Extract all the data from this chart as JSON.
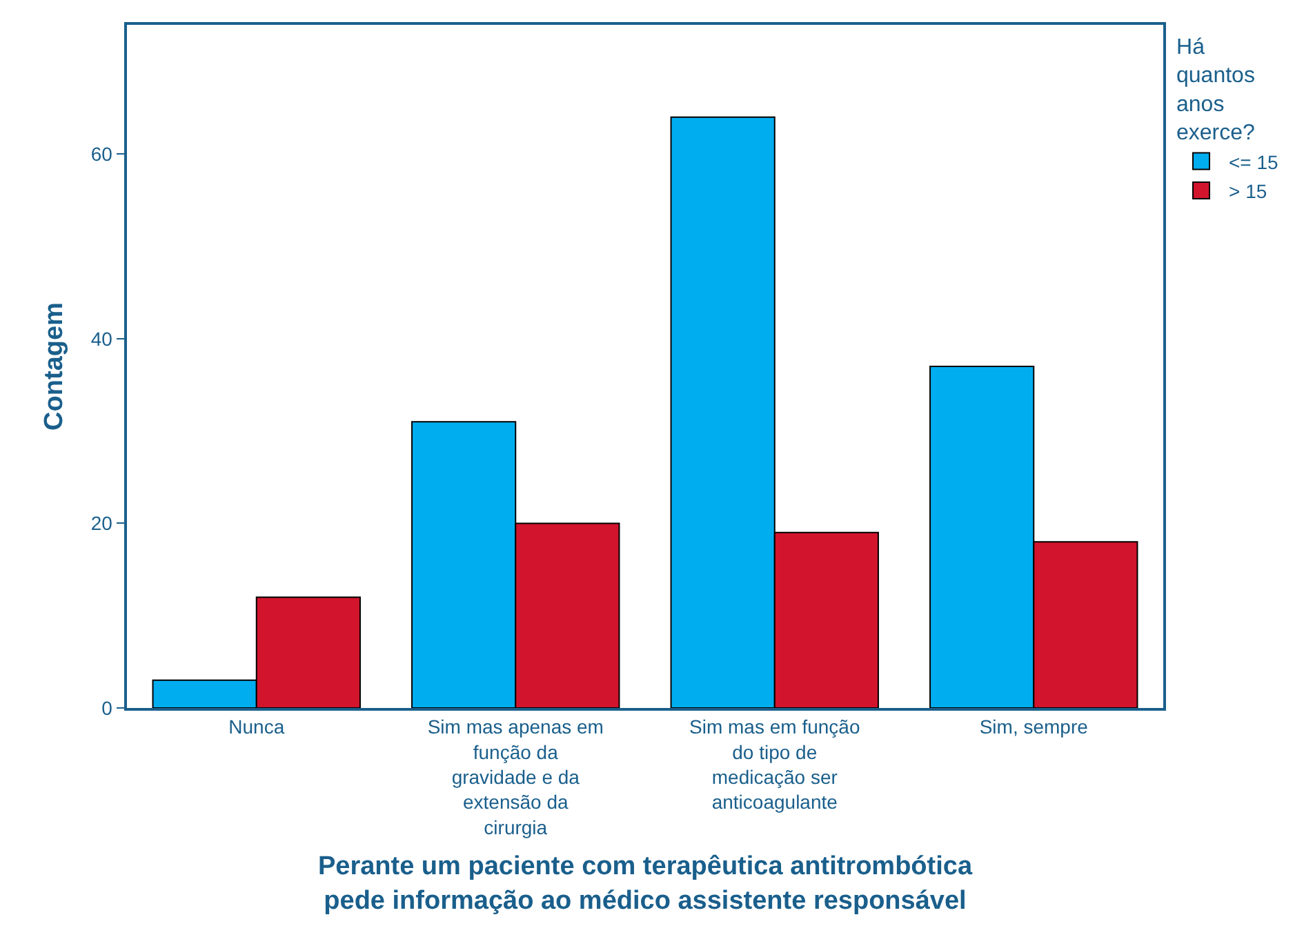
{
  "chart_data": {
    "type": "bar",
    "xlabel": "Perante um paciente com terapêutica antitrombótica pede informação ao médico assistente responsável",
    "ylabel": "Contagem",
    "legend_title": "Há quantos anos exerce?",
    "categories": [
      "Nunca",
      "Sim mas apenas em função da gravidade e da extensão da cirurgia",
      "Sim mas em função do tipo de medicação ser anticoagulante",
      "Sim, sempre"
    ],
    "series": [
      {
        "name": "<= 15",
        "color": "#00aeef",
        "values": [
          3,
          31,
          64,
          37
        ]
      },
      {
        "name": "> 15",
        "color": "#d2142d",
        "values": [
          12,
          20,
          19,
          18
        ]
      }
    ],
    "ylim": [
      0,
      74
    ],
    "yticks": [
      0,
      20,
      40,
      60
    ],
    "legend": "top right"
  }
}
